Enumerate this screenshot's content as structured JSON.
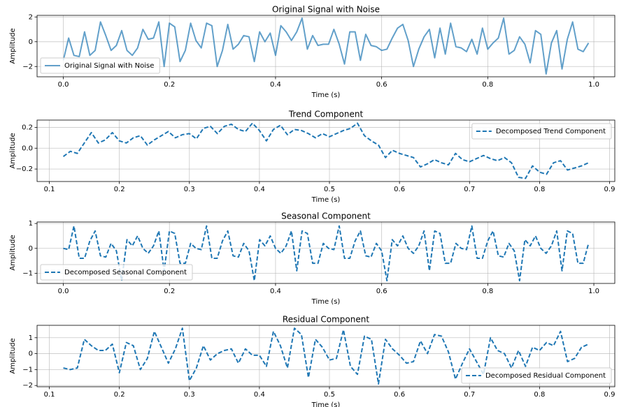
{
  "chart_data": [
    {
      "type": "line",
      "title": "Original Signal with Noise",
      "xlabel": "Time (s)",
      "ylabel": "Amplitude",
      "x": [
        0,
        0.01,
        0.02,
        0.03,
        0.04,
        0.05,
        0.06,
        0.07,
        0.08,
        0.09,
        0.1,
        0.11,
        0.12,
        0.13,
        0.14,
        0.15,
        0.16,
        0.17,
        0.18,
        0.19,
        0.2,
        0.21,
        0.22,
        0.23,
        0.24,
        0.25,
        0.26,
        0.27,
        0.28,
        0.29,
        0.3,
        0.31,
        0.32,
        0.33,
        0.34,
        0.35,
        0.36,
        0.37,
        0.38,
        0.39,
        0.4,
        0.41,
        0.42,
        0.43,
        0.44,
        0.45,
        0.46,
        0.47,
        0.48,
        0.49,
        0.5,
        0.51,
        0.52,
        0.53,
        0.54,
        0.55,
        0.56,
        0.57,
        0.58,
        0.59,
        0.6,
        0.61,
        0.62,
        0.63,
        0.64,
        0.65,
        0.66,
        0.67,
        0.68,
        0.69,
        0.7,
        0.71,
        0.72,
        0.73,
        0.74,
        0.75,
        0.76,
        0.77,
        0.78,
        0.79,
        0.8,
        0.81,
        0.82,
        0.83,
        0.84,
        0.85,
        0.86,
        0.87,
        0.88,
        0.89,
        0.9,
        0.91,
        0.92,
        0.93,
        0.94,
        0.95,
        0.96,
        0.97,
        0.98,
        0.99
      ],
      "series": [
        {
          "name": "Original Signal with Noise",
          "color": "#1f77b4",
          "alpha": 0.7,
          "linestyle": "solid",
          "values": [
            -1.5,
            0.3,
            -1.1,
            -1.2,
            0.8,
            -1.1,
            -0.7,
            1.6,
            0.5,
            -0.7,
            -0.3,
            0.9,
            -0.7,
            -1.1,
            -0.5,
            1.0,
            0.2,
            0.3,
            1.6,
            -2.0,
            1.5,
            1.2,
            -1.6,
            -0.7,
            1.5,
            0.1,
            -0.5,
            1.5,
            1.3,
            -2.0,
            -0.7,
            1.4,
            -0.6,
            -0.2,
            0.5,
            0.4,
            -1.6,
            0.8,
            0.0,
            0.7,
            -1.1,
            1.3,
            0.8,
            0.1,
            0.8,
            1.9,
            -0.6,
            0.5,
            -0.3,
            -0.2,
            -0.2,
            1.0,
            -0.2,
            -1.8,
            0.8,
            0.8,
            -1.5,
            0.6,
            -0.3,
            -0.4,
            -0.7,
            -0.6,
            0.3,
            1.1,
            1.4,
            0.1,
            -2.0,
            -0.6,
            0.4,
            1.0,
            -1.3,
            1.1,
            -1.0,
            1.5,
            -0.4,
            -0.5,
            -0.8,
            0.2,
            -1.0,
            1.1,
            -0.6,
            -0.1,
            0.3,
            1.9,
            -1.0,
            -0.7,
            0.4,
            -0.2,
            -1.7,
            0.9,
            0.6,
            -2.6,
            -0.1,
            0.9,
            -2.2,
            0.2,
            1.6,
            -0.6,
            -0.8,
            -0.1
          ]
        }
      ],
      "xlim": [
        -0.0495,
        1.0395
      ],
      "ylim": [
        -2.83,
        2.13
      ],
      "xticks": [
        {
          "value": 0,
          "label": "0.0"
        },
        0.2,
        0.4,
        0.6,
        0.8,
        {
          "value": 1,
          "label": "1.0"
        }
      ],
      "yticks": [
        {
          "value": -2,
          "label": "−2"
        },
        0,
        2
      ],
      "grid": true,
      "legend": "lower left"
    },
    {
      "type": "line",
      "title": "Trend Component",
      "xlabel": "Time (s)",
      "ylabel": "Amplitude",
      "x": [
        0.12,
        0.13,
        0.14,
        0.15,
        0.16,
        0.17,
        0.18,
        0.19,
        0.2,
        0.21,
        0.22,
        0.23,
        0.24,
        0.25,
        0.26,
        0.27,
        0.28,
        0.29,
        0.3,
        0.31,
        0.32,
        0.33,
        0.34,
        0.35,
        0.36,
        0.37,
        0.38,
        0.39,
        0.4,
        0.41,
        0.42,
        0.43,
        0.44,
        0.45,
        0.46,
        0.47,
        0.48,
        0.49,
        0.5,
        0.51,
        0.52,
        0.53,
        0.54,
        0.55,
        0.56,
        0.57,
        0.58,
        0.59,
        0.6,
        0.61,
        0.62,
        0.63,
        0.64,
        0.65,
        0.66,
        0.67,
        0.68,
        0.69,
        0.7,
        0.71,
        0.72,
        0.73,
        0.74,
        0.75,
        0.76,
        0.77,
        0.78,
        0.79,
        0.8,
        0.81,
        0.82,
        0.83,
        0.84,
        0.85,
        0.86,
        0.87
      ],
      "series": [
        {
          "name": "Decomposed Trend Component",
          "color": "#1f77b4",
          "alpha": 1,
          "linestyle": "dashed",
          "values": [
            -0.08,
            -0.03,
            -0.05,
            0.05,
            0.15,
            0.05,
            0.08,
            0.15,
            0.07,
            0.05,
            0.1,
            0.12,
            0.03,
            0.08,
            0.12,
            0.16,
            0.1,
            0.13,
            0.14,
            0.09,
            0.19,
            0.21,
            0.14,
            0.21,
            0.23,
            0.18,
            0.16,
            0.24,
            0.17,
            0.07,
            0.18,
            0.22,
            0.13,
            0.18,
            0.17,
            0.14,
            0.1,
            0.14,
            0.11,
            0.14,
            0.17,
            0.19,
            0.24,
            0.12,
            0.07,
            0.03,
            -0.09,
            -0.02,
            -0.05,
            -0.07,
            -0.09,
            -0.18,
            -0.15,
            -0.11,
            -0.14,
            -0.16,
            -0.05,
            -0.11,
            -0.13,
            -0.1,
            -0.07,
            -0.1,
            -0.12,
            -0.09,
            -0.14,
            -0.28,
            -0.29,
            -0.17,
            -0.23,
            -0.25,
            -0.14,
            -0.12,
            -0.21,
            -0.19,
            -0.17,
            -0.14
          ]
        }
      ],
      "xlim": [
        0.0825,
        0.9075
      ],
      "ylim": [
        -0.32,
        0.27
      ],
      "xticks": [
        0.1,
        0.2,
        0.3,
        0.4,
        0.5,
        0.6,
        0.7,
        0.8,
        0.9
      ],
      "yticks": [
        {
          "value": -0.2,
          "label": "−0.2"
        },
        {
          "value": 0,
          "label": "0.0"
        },
        0.2
      ],
      "grid": true,
      "legend": "upper right"
    },
    {
      "type": "line",
      "title": "Seasonal Component",
      "xlabel": "Time (s)",
      "ylabel": "Amplitude",
      "x": [
        0,
        0.01,
        0.02,
        0.03,
        0.04,
        0.05,
        0.06,
        0.07,
        0.08,
        0.09,
        0.1,
        0.11,
        0.12,
        0.13,
        0.14,
        0.15,
        0.16,
        0.17,
        0.18,
        0.19,
        0.2,
        0.21,
        0.22,
        0.23,
        0.24,
        0.25,
        0.26,
        0.27,
        0.28,
        0.29,
        0.3,
        0.31,
        0.32,
        0.33,
        0.34,
        0.35,
        0.36,
        0.37,
        0.38,
        0.39,
        0.4,
        0.41,
        0.42,
        0.43,
        0.44,
        0.45,
        0.46,
        0.47,
        0.48,
        0.49,
        0.5,
        0.51,
        0.52,
        0.53,
        0.54,
        0.55,
        0.56,
        0.57,
        0.58,
        0.59,
        0.6,
        0.61,
        0.62,
        0.63,
        0.64,
        0.65,
        0.66,
        0.67,
        0.68,
        0.69,
        0.7,
        0.71,
        0.72,
        0.73,
        0.74,
        0.75,
        0.76,
        0.77,
        0.78,
        0.79,
        0.8,
        0.81,
        0.82,
        0.83,
        0.84,
        0.85,
        0.86,
        0.87,
        0.88,
        0.89,
        0.9,
        0.91,
        0.92,
        0.93,
        0.94,
        0.95,
        0.96,
        0.97,
        0.98,
        0.99
      ],
      "series": [
        {
          "name": "Decomposed Seasonal Component",
          "color": "#1f77b4",
          "alpha": 1,
          "linestyle": "dashed",
          "values": [
            0.0,
            -0.05,
            0.9,
            -0.4,
            -0.4,
            0.3,
            0.7,
            -0.3,
            -0.35,
            0.2,
            -0.1,
            -1.3,
            0.35,
            0.1,
            0.5,
            0.0,
            -0.2,
            0.1,
            0.7,
            -0.9,
            0.7,
            0.6,
            -0.6,
            -0.6,
            0.2,
            0.0,
            -0.05,
            0.9,
            -0.4,
            -0.4,
            0.3,
            0.7,
            -0.3,
            -0.35,
            0.2,
            -0.1,
            -1.3,
            0.35,
            0.1,
            0.5,
            0.0,
            -0.2,
            0.1,
            0.7,
            -0.9,
            0.7,
            0.6,
            -0.6,
            -0.6,
            0.2,
            0.0,
            -0.05,
            0.9,
            -0.4,
            -0.4,
            0.3,
            0.7,
            -0.3,
            -0.35,
            0.2,
            -0.1,
            -1.3,
            0.35,
            0.1,
            0.5,
            0.0,
            -0.2,
            0.1,
            0.7,
            -0.9,
            0.7,
            0.6,
            -0.6,
            -0.6,
            0.2,
            0.0,
            -0.05,
            0.9,
            -0.4,
            -0.4,
            0.3,
            0.7,
            -0.3,
            -0.35,
            0.2,
            -0.1,
            -1.3,
            0.35,
            0.1,
            0.5,
            0.0,
            -0.2,
            0.1,
            0.7,
            -0.9,
            0.7,
            0.6,
            -0.6,
            -0.6,
            0.2
          ]
        }
      ],
      "xlim": [
        -0.0495,
        1.0395
      ],
      "ylim": [
        -1.41,
        1.06
      ],
      "xticks": [
        {
          "value": 0,
          "label": "0.0"
        },
        0.2,
        0.4,
        0.6,
        0.8,
        {
          "value": 1,
          "label": "1.0"
        }
      ],
      "yticks": [
        {
          "value": -1,
          "label": "−1"
        },
        0,
        1
      ],
      "grid": true,
      "legend": "lower left"
    },
    {
      "type": "line",
      "title": "Residual Component",
      "xlabel": "Time (s)",
      "ylabel": "Amplitude",
      "x": [
        0.12,
        0.13,
        0.14,
        0.15,
        0.16,
        0.17,
        0.18,
        0.19,
        0.2,
        0.21,
        0.22,
        0.23,
        0.24,
        0.25,
        0.26,
        0.27,
        0.28,
        0.29,
        0.3,
        0.31,
        0.32,
        0.33,
        0.34,
        0.35,
        0.36,
        0.37,
        0.38,
        0.39,
        0.4,
        0.41,
        0.42,
        0.43,
        0.44,
        0.45,
        0.46,
        0.47,
        0.48,
        0.49,
        0.5,
        0.51,
        0.52,
        0.53,
        0.54,
        0.55,
        0.56,
        0.57,
        0.58,
        0.59,
        0.6,
        0.61,
        0.62,
        0.63,
        0.64,
        0.65,
        0.66,
        0.67,
        0.68,
        0.69,
        0.7,
        0.71,
        0.72,
        0.73,
        0.74,
        0.75,
        0.76,
        0.77,
        0.78,
        0.79,
        0.8,
        0.81,
        0.82,
        0.83,
        0.84,
        0.85,
        0.86,
        0.87
      ],
      "series": [
        {
          "name": "Decomposed Residual Component",
          "color": "#1f77b4",
          "alpha": 1,
          "linestyle": "dashed",
          "values": [
            -0.9,
            -1.0,
            -0.9,
            0.9,
            0.5,
            0.2,
            0.2,
            0.6,
            -1.2,
            0.7,
            0.5,
            -1.0,
            -0.3,
            1.4,
            0.4,
            -0.6,
            0.3,
            1.6,
            -1.7,
            -0.9,
            0.5,
            -0.4,
            0.0,
            0.2,
            0.3,
            -0.6,
            0.3,
            -0.1,
            -0.1,
            -0.8,
            1.4,
            0.5,
            -0.9,
            1.6,
            1.2,
            -1.5,
            0.9,
            0.4,
            -0.4,
            -0.3,
            1.5,
            -0.8,
            -1.3,
            1.1,
            0.9,
            -1.9,
            0.9,
            0.3,
            -0.1,
            -0.6,
            -0.5,
            0.8,
            0.0,
            1.2,
            1.1,
            0.1,
            -1.6,
            -0.6,
            0.3,
            -0.5,
            -1.3,
            1.0,
            0.2,
            0.0,
            -0.9,
            0.2,
            -0.8,
            0.4,
            0.2,
            0.7,
            0.5,
            1.4,
            -0.5,
            -0.3,
            0.4,
            0.6
          ]
        }
      ],
      "xlim": [
        0.0825,
        0.9075
      ],
      "ylim": [
        -2.08,
        1.78
      ],
      "xticks": [
        0.1,
        0.2,
        0.3,
        0.4,
        0.5,
        0.6,
        0.7,
        0.8,
        0.9
      ],
      "yticks": [
        {
          "value": -2,
          "label": "−2"
        },
        {
          "value": -1,
          "label": "−1"
        },
        0,
        1
      ],
      "grid": true,
      "legend": "lower right"
    }
  ]
}
